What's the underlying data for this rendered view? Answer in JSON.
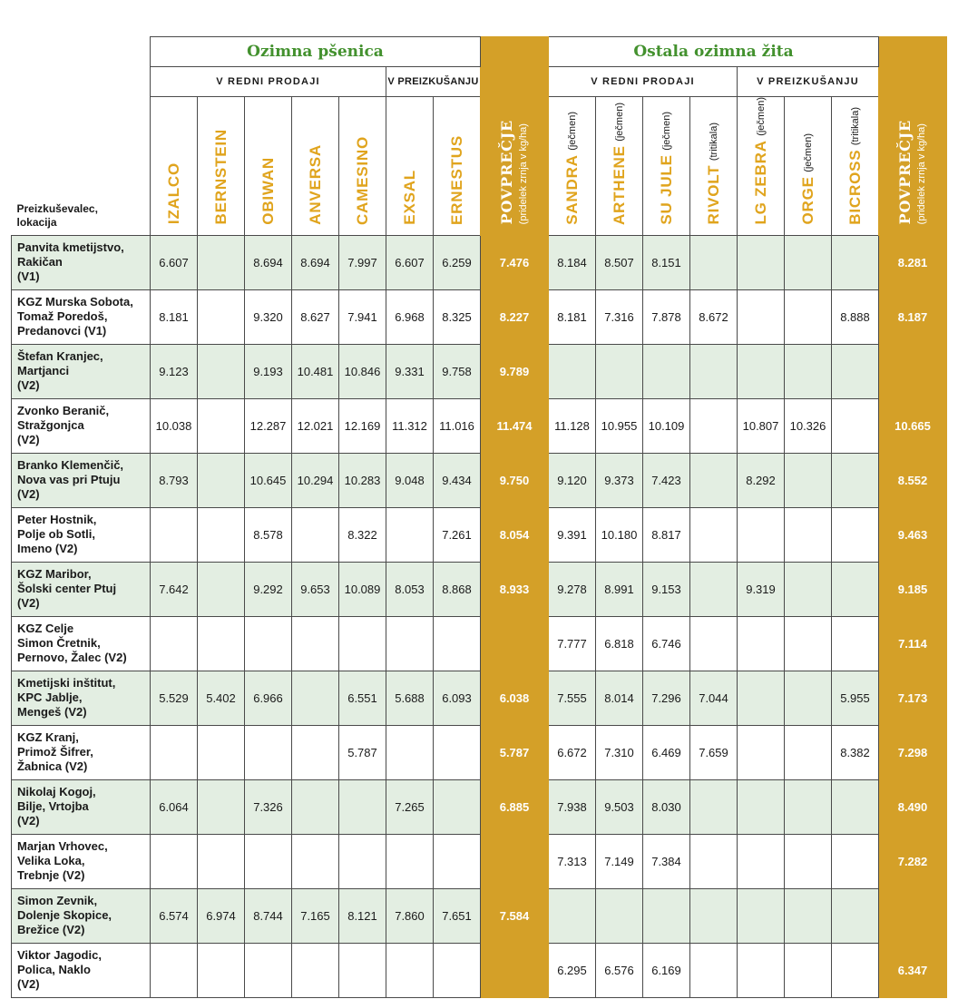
{
  "header": {
    "corner_label_line1": "Preizkuševalec,",
    "corner_label_line2": "lokacija",
    "section_wheat": "Ozimna pšenica",
    "section_other": "Ostala ozimna žita",
    "sub_regular": "V REDNI PRODAJI",
    "sub_trial": "V PREIZKUŠANJU",
    "avg_label": "POVPREČJE",
    "avg_unit": "(pridelek zrnja v kg/ha)"
  },
  "wheat_varieties": [
    {
      "name": "IZALCO",
      "sub": ""
    },
    {
      "name": "BERNSTEIN",
      "sub": ""
    },
    {
      "name": "OBIWAN",
      "sub": ""
    },
    {
      "name": "ANVERSA",
      "sub": ""
    },
    {
      "name": "CAMESINO",
      "sub": ""
    },
    {
      "name": "EXSAL",
      "sub": ""
    },
    {
      "name": "ERNESTUS",
      "sub": ""
    }
  ],
  "other_varieties": [
    {
      "name": "SANDRA",
      "sub": "(ječmen)"
    },
    {
      "name": "ARTHENE",
      "sub": "(ječmen)"
    },
    {
      "name": "SU JULE",
      "sub": "(ječmen)"
    },
    {
      "name": "RIVOLT",
      "sub": "(tritikala)"
    },
    {
      "name": "LG ZEBRA",
      "sub": "(ječmen)"
    },
    {
      "name": "ORGE",
      "sub": "(ječmen)"
    },
    {
      "name": "BICROSS",
      "sub": "(tritikala)"
    }
  ],
  "rows": [
    {
      "loc": [
        "Panvita kmetijstvo,",
        "Rakičan",
        "(V1)"
      ],
      "wheat": [
        "6.607",
        "",
        "8.694",
        "8.694",
        "7.997",
        "6.607",
        "6.259"
      ],
      "wheat_avg": "7.476",
      "other": [
        "8.184",
        "8.507",
        "8.151",
        "",
        "",
        "",
        ""
      ],
      "other_avg": "8.281"
    },
    {
      "loc": [
        "KGZ Murska Sobota,",
        "Tomaž Poredoš,",
        "Predanovci (V1)"
      ],
      "wheat": [
        "8.181",
        "",
        "9.320",
        "8.627",
        "7.941",
        "6.968",
        "8.325"
      ],
      "wheat_avg": "8.227",
      "other": [
        "8.181",
        "7.316",
        "7.878",
        "8.672",
        "",
        "",
        "8.888"
      ],
      "other_avg": "8.187"
    },
    {
      "loc": [
        "Štefan Kranjec,",
        "Martjanci",
        "(V2)"
      ],
      "wheat": [
        "9.123",
        "",
        "9.193",
        "10.481",
        "10.846",
        "9.331",
        "9.758"
      ],
      "wheat_avg": "9.789",
      "other": [
        "",
        "",
        "",
        "",
        "",
        "",
        ""
      ],
      "other_avg": ""
    },
    {
      "loc": [
        "Zvonko Beranič,",
        "Stražgonjca",
        "(V2)"
      ],
      "wheat": [
        "10.038",
        "",
        "12.287",
        "12.021",
        "12.169",
        "11.312",
        "11.016"
      ],
      "wheat_avg": "11.474",
      "other": [
        "11.128",
        "10.955",
        "10.109",
        "",
        "10.807",
        "10.326",
        ""
      ],
      "other_avg": "10.665"
    },
    {
      "loc": [
        "Branko Klemenčič,",
        "Nova vas pri Ptuju",
        "(V2)"
      ],
      "wheat": [
        "8.793",
        "",
        "10.645",
        "10.294",
        "10.283",
        "9.048",
        "9.434"
      ],
      "wheat_avg": "9.750",
      "other": [
        "9.120",
        "9.373",
        "7.423",
        "",
        "8.292",
        "",
        ""
      ],
      "other_avg": "8.552"
    },
    {
      "loc": [
        "Peter Hostnik,",
        "Polje ob Sotli,",
        "Imeno (V2)"
      ],
      "wheat": [
        "",
        "",
        "8.578",
        "",
        "8.322",
        "",
        "7.261"
      ],
      "wheat_avg": "8.054",
      "other": [
        "9.391",
        "10.180",
        "8.817",
        "",
        "",
        "",
        ""
      ],
      "other_avg": "9.463"
    },
    {
      "loc": [
        "KGZ Maribor,",
        "Šolski center Ptuj",
        "(V2)"
      ],
      "wheat": [
        "7.642",
        "",
        "9.292",
        "9.653",
        "10.089",
        "8.053",
        "8.868"
      ],
      "wheat_avg": "8.933",
      "other": [
        "9.278",
        "8.991",
        "9.153",
        "",
        "9.319",
        "",
        ""
      ],
      "other_avg": "9.185"
    },
    {
      "loc": [
        "KGZ Celje",
        "Simon Čretnik,",
        "Pernovo, Žalec (V2)"
      ],
      "wheat": [
        "",
        "",
        "",
        "",
        "",
        "",
        ""
      ],
      "wheat_avg": "",
      "other": [
        "7.777",
        "6.818",
        "6.746",
        "",
        "",
        "",
        ""
      ],
      "other_avg": "7.114"
    },
    {
      "loc": [
        "Kmetijski inštitut,",
        "KPC Jablje,",
        "Mengeš (V2)"
      ],
      "wheat": [
        "5.529",
        "5.402",
        "6.966",
        "",
        "6.551",
        "5.688",
        "6.093"
      ],
      "wheat_avg": "6.038",
      "other": [
        "7.555",
        "8.014",
        "7.296",
        "7.044",
        "",
        "",
        "5.955"
      ],
      "other_avg": "7.173"
    },
    {
      "loc": [
        "KGZ Kranj,",
        "Primož Šifrer,",
        "Žabnica (V2)"
      ],
      "wheat": [
        "",
        "",
        "",
        "",
        "5.787",
        "",
        ""
      ],
      "wheat_avg": "5.787",
      "other": [
        "6.672",
        "7.310",
        "6.469",
        "7.659",
        "",
        "",
        "8.382"
      ],
      "other_avg": "7.298"
    },
    {
      "loc": [
        "Nikolaj Kogoj,",
        "Bilje, Vrtojba",
        "(V2)"
      ],
      "wheat": [
        "6.064",
        "",
        "7.326",
        "",
        "",
        "7.265",
        ""
      ],
      "wheat_avg": "6.885",
      "other": [
        "7.938",
        "9.503",
        "8.030",
        "",
        "",
        "",
        ""
      ],
      "other_avg": "8.490"
    },
    {
      "loc": [
        "Marjan Vrhovec,",
        "Velika Loka,",
        "Trebnje (V2)"
      ],
      "wheat": [
        "",
        "",
        "",
        "",
        "",
        "",
        ""
      ],
      "wheat_avg": "",
      "other": [
        "7.313",
        "7.149",
        "7.384",
        "",
        "",
        "",
        ""
      ],
      "other_avg": "7.282"
    },
    {
      "loc": [
        "Simon Zevnik,",
        "Dolenje Skopice,",
        "Brežice (V2)"
      ],
      "wheat": [
        "6.574",
        "6.974",
        "8.744",
        "7.165",
        "8.121",
        "7.860",
        "7.651"
      ],
      "wheat_avg": "7.584",
      "other": [
        "",
        "",
        "",
        "",
        "",
        "",
        ""
      ],
      "other_avg": ""
    },
    {
      "loc": [
        "Viktor Jagodic,",
        "Polica, Naklo",
        "(V2)"
      ],
      "wheat": [
        "",
        "",
        "",
        "",
        "",
        "",
        ""
      ],
      "wheat_avg": "",
      "other": [
        "6.295",
        "6.576",
        "6.169",
        "",
        "",
        "",
        ""
      ],
      "other_avg": "6.347"
    }
  ]
}
